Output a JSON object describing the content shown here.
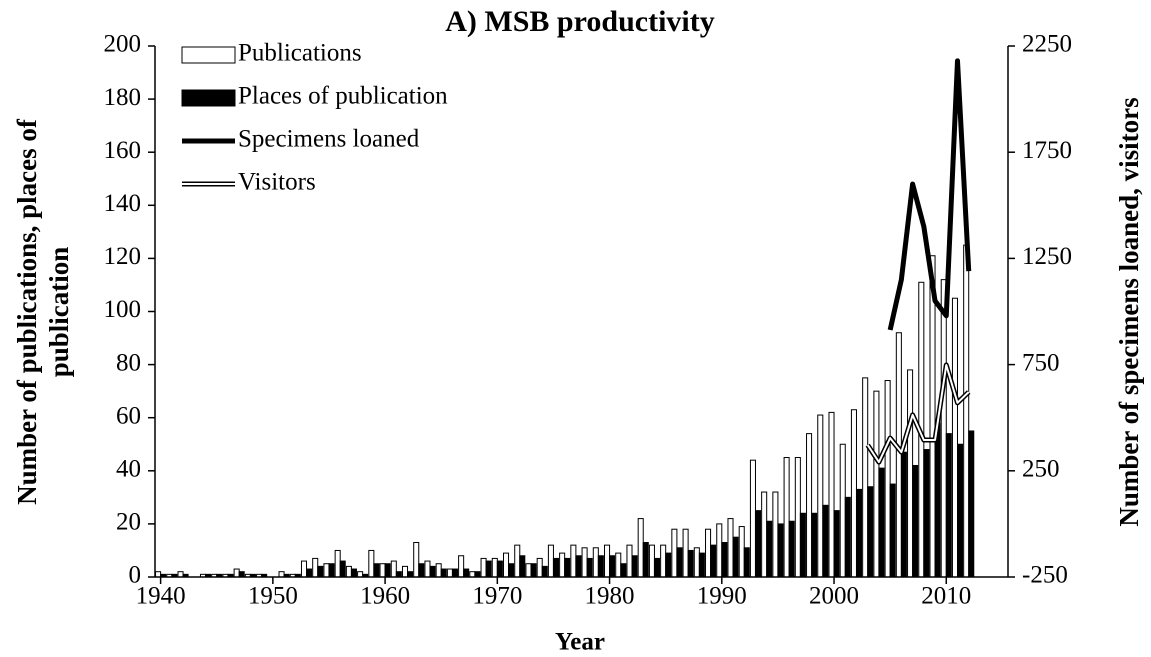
{
  "chart_data": {
    "type": "bar_line",
    "title": "A) MSB productivity",
    "x_label": "Year",
    "y_label": [
      "Number of publications, places of",
      "publication"
    ],
    "y2_label": "Number of specimens loaned, visitors",
    "x": [
      1940,
      1941,
      1942,
      1943,
      1944,
      1945,
      1946,
      1947,
      1948,
      1949,
      1950,
      1951,
      1952,
      1953,
      1954,
      1955,
      1956,
      1957,
      1958,
      1959,
      1960,
      1961,
      1962,
      1963,
      1964,
      1965,
      1966,
      1967,
      1968,
      1969,
      1970,
      1971,
      1972,
      1973,
      1974,
      1975,
      1976,
      1977,
      1978,
      1979,
      1980,
      1981,
      1982,
      1983,
      1984,
      1985,
      1986,
      1987,
      1988,
      1989,
      1990,
      1991,
      1992,
      1993,
      1994,
      1995,
      1996,
      1997,
      1998,
      1999,
      2000,
      2001,
      2002,
      2003,
      2004,
      2005,
      2006,
      2007,
      2008,
      2009,
      2010,
      2011,
      2012
    ],
    "series": [
      {
        "name": "Publications",
        "kind": "bar",
        "color": "#ffffff",
        "values": [
          2,
          1,
          2,
          0,
          1,
          1,
          1,
          3,
          1,
          1,
          0,
          2,
          1,
          6,
          7,
          5,
          10,
          4,
          2,
          10,
          5,
          6,
          4,
          13,
          6,
          5,
          3,
          8,
          2,
          7,
          7,
          9,
          12,
          5,
          7,
          12,
          9,
          12,
          11,
          11,
          12,
          9,
          12,
          22,
          12,
          12,
          18,
          18,
          11,
          18,
          20,
          22,
          19,
          44,
          32,
          32,
          45,
          45,
          54,
          61,
          62,
          50,
          63,
          75,
          70,
          74,
          92,
          78,
          111,
          121,
          112,
          105,
          125
        ]
      },
      {
        "name": "Places of publication",
        "kind": "bar",
        "color": "#000000",
        "values": [
          1,
          1,
          1,
          0,
          1,
          1,
          1,
          2,
          1,
          1,
          0,
          1,
          1,
          3,
          4,
          5,
          6,
          3,
          1,
          5,
          5,
          2,
          2,
          5,
          4,
          3,
          3,
          3,
          2,
          6,
          6,
          5,
          8,
          5,
          4,
          7,
          7,
          8,
          7,
          8,
          8,
          5,
          8,
          13,
          7,
          9,
          11,
          10,
          9,
          12,
          13,
          15,
          11,
          25,
          21,
          20,
          21,
          24,
          24,
          27,
          25,
          30,
          33,
          34,
          41,
          35,
          47,
          42,
          48,
          58,
          54,
          50,
          55
        ]
      },
      {
        "name": "Specimens loaned",
        "kind": "line",
        "axis": "y2",
        "color": "#000000",
        "x": [
          2005,
          2006,
          2007,
          2008,
          2009,
          2010,
          2011,
          2012
        ],
        "values": [
          913,
          1150,
          1600,
          1400,
          1050,
          980,
          2180,
          1190
        ]
      },
      {
        "name": "Visitors",
        "kind": "double-line",
        "axis": "y2",
        "color": "#ffffff",
        "x": [
          2003,
          2004,
          2005,
          2006,
          2007,
          2008,
          2009,
          2010,
          2011,
          2012
        ],
        "values": [
          371,
          291,
          404,
          338,
          513,
          395,
          395,
          748,
          570,
          621
        ]
      }
    ],
    "xlim": [
      1939.5,
      2015.5
    ],
    "xticks": [
      1940,
      1950,
      1960,
      1970,
      1980,
      1990,
      2000,
      2010
    ],
    "ylim": [
      0,
      200
    ],
    "yticks": [
      0,
      20,
      40,
      60,
      80,
      100,
      120,
      140,
      160,
      180,
      200
    ],
    "y2lim": [
      -250,
      2250
    ],
    "y2ticks": [
      -250,
      250,
      750,
      1250,
      1750,
      2250
    ],
    "legend": "upper left"
  }
}
